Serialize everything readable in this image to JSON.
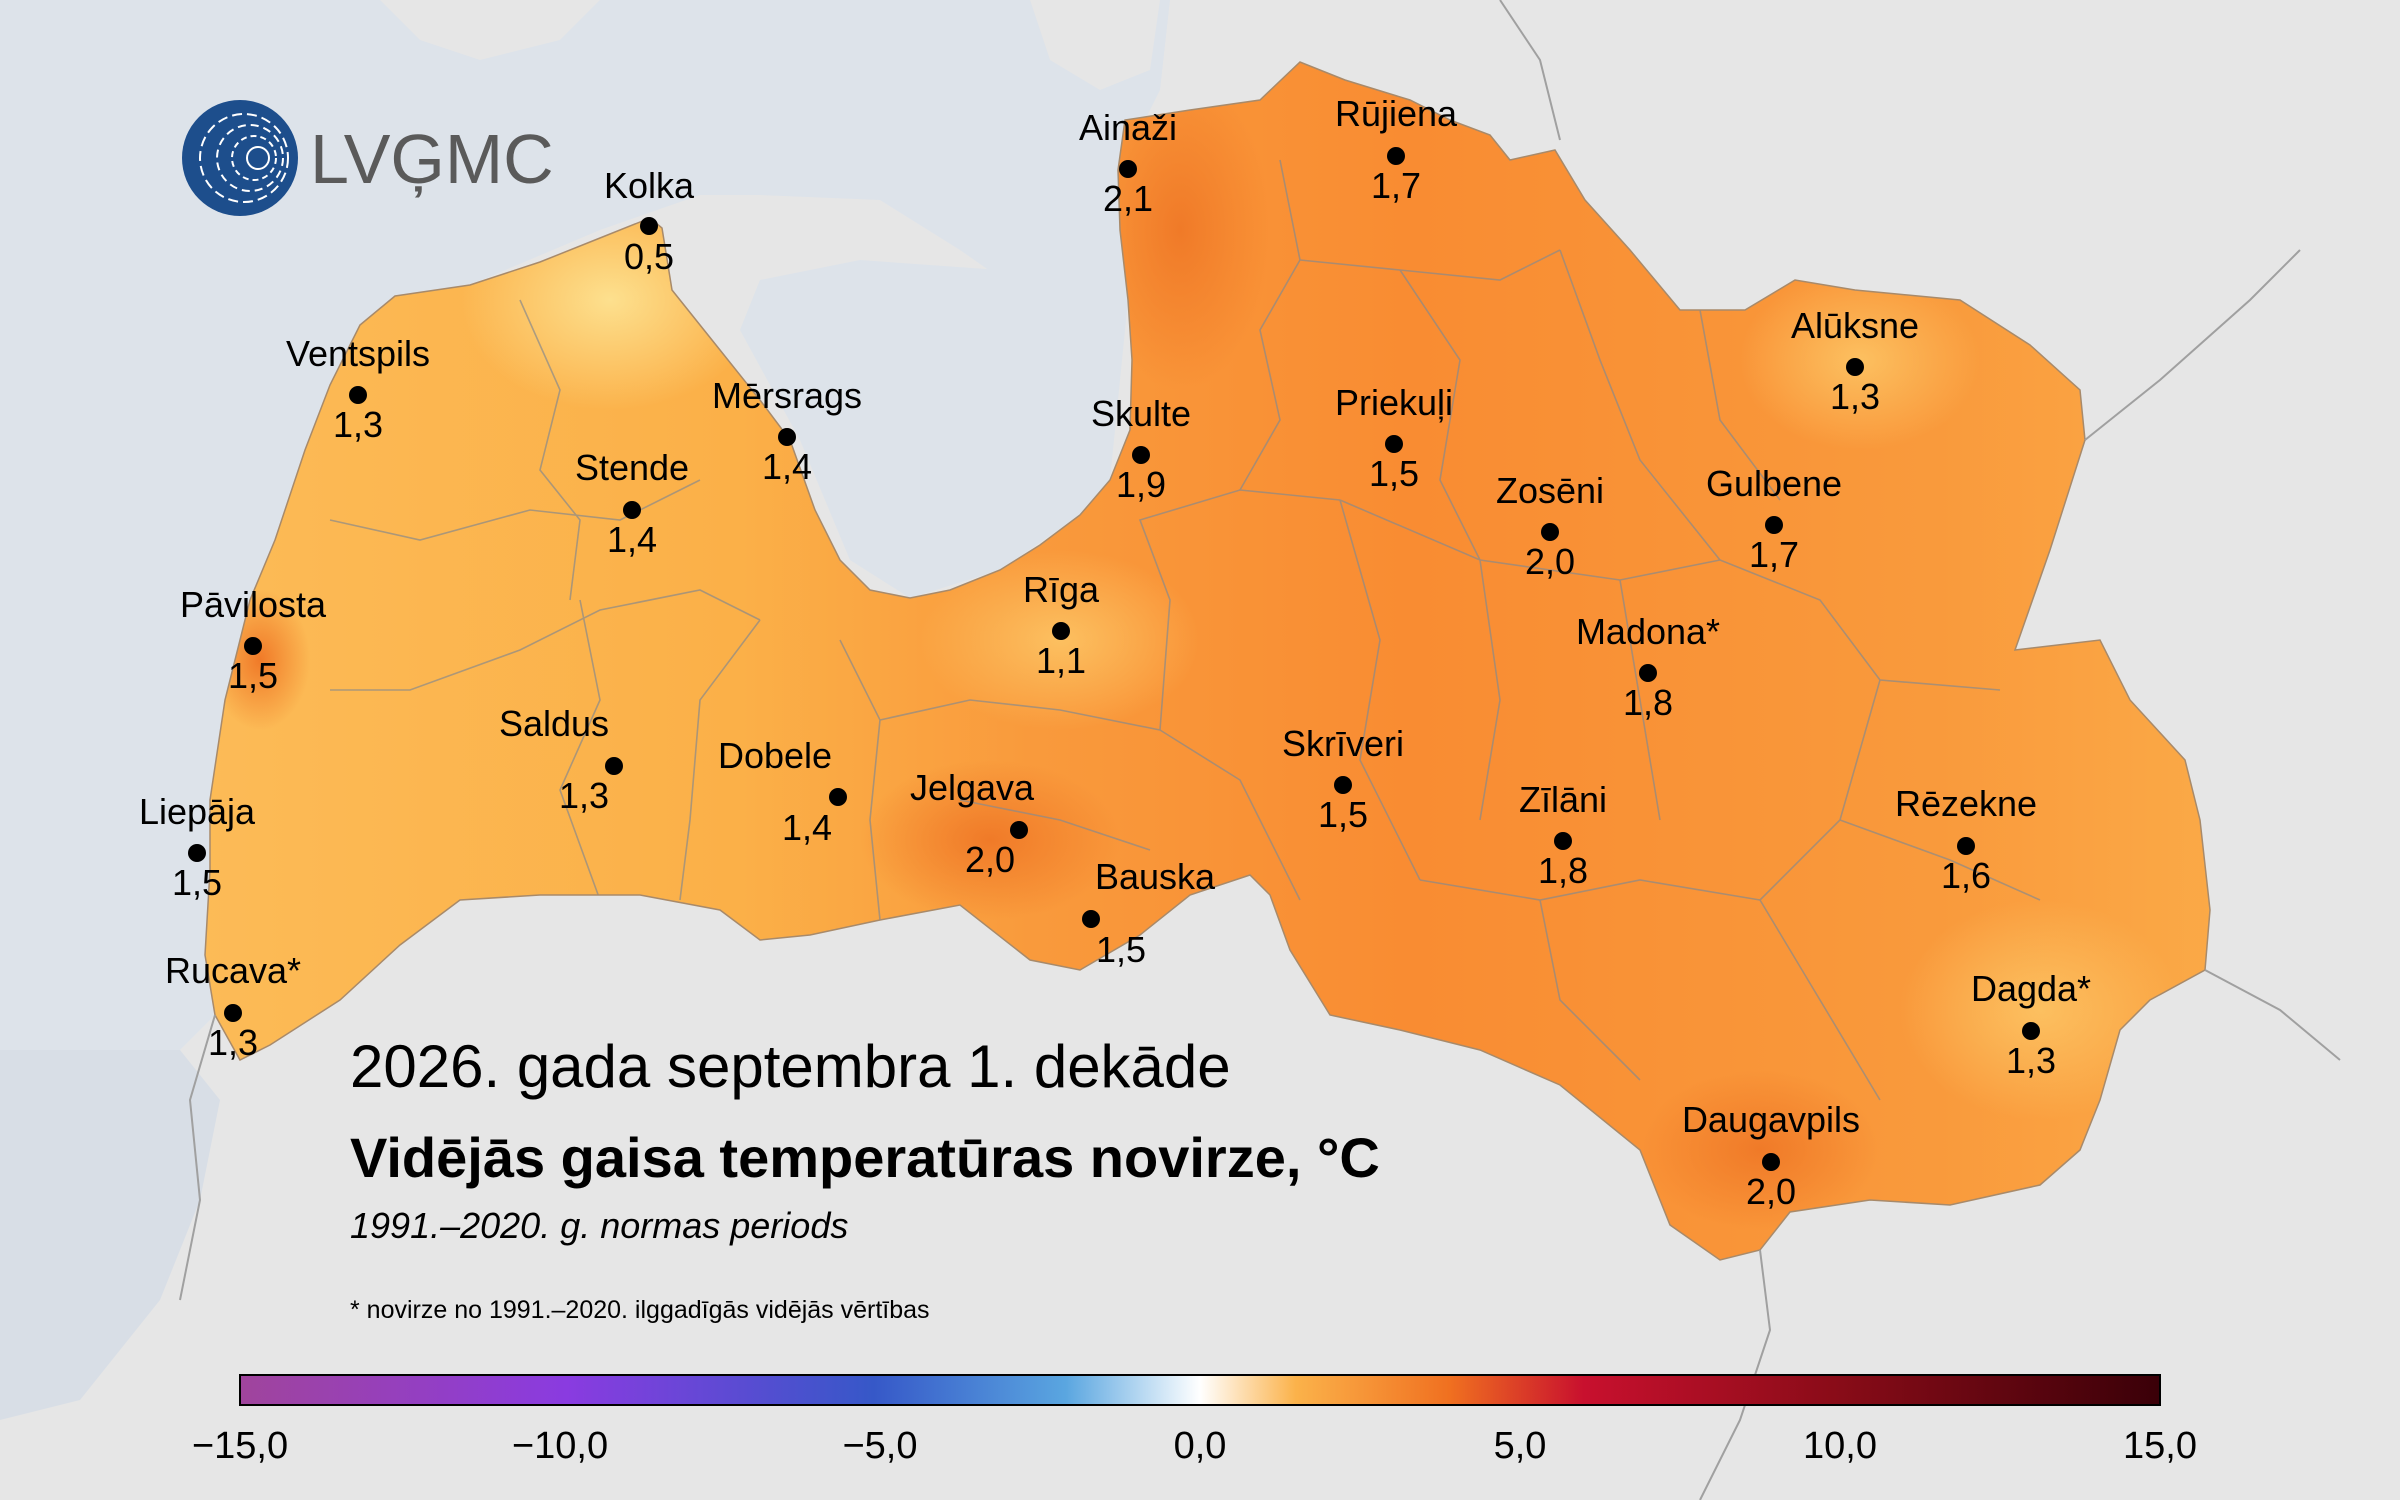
{
  "logo": {
    "text": "LVĢMC",
    "icon": "lvgmc-logo-icon"
  },
  "header": {
    "date_line": "2026. gada septembra 1. dekāde",
    "title": "Vidējās gaisa temperatūras novirze, °C",
    "period": "1991.–2020. g. normas periods"
  },
  "footnote": "* novirze no 1991.–2020. ilggadīgās vidējās vērtības",
  "stations": [
    {
      "name": "Kolka",
      "value": "0,5"
    },
    {
      "name": "Ventspils",
      "value": "1,3"
    },
    {
      "name": "Mērsrags",
      "value": "1,4"
    },
    {
      "name": "Stende",
      "value": "1,4"
    },
    {
      "name": "Pāvilosta",
      "value": "1,5"
    },
    {
      "name": "Saldus",
      "value": "1,3"
    },
    {
      "name": "Dobele",
      "value": "1,4"
    },
    {
      "name": "Liepāja",
      "value": "1,5"
    },
    {
      "name": "Rucava*",
      "value": "1,3"
    },
    {
      "name": "Ainaži",
      "value": "2,1"
    },
    {
      "name": "Rūjiena",
      "value": "1,7"
    },
    {
      "name": "Skulte",
      "value": "1,9"
    },
    {
      "name": "Rīga",
      "value": "1,1"
    },
    {
      "name": "Jelgava",
      "value": "2,0"
    },
    {
      "name": "Bauska",
      "value": "1,5"
    },
    {
      "name": "Priekuļi",
      "value": "1,5"
    },
    {
      "name": "Zosēni",
      "value": "2,0"
    },
    {
      "name": "Gulbene",
      "value": "1,7"
    },
    {
      "name": "Alūksne",
      "value": "1,3"
    },
    {
      "name": "Madona*",
      "value": "1,8"
    },
    {
      "name": "Skrīveri",
      "value": "1,5"
    },
    {
      "name": "Zīlāni",
      "value": "1,8"
    },
    {
      "name": "Rēzekne",
      "value": "1,6"
    },
    {
      "name": "Dagda*",
      "value": "1,3"
    },
    {
      "name": "Daugavpils",
      "value": "2,0"
    }
  ],
  "legend": {
    "min": -15,
    "max": 15,
    "tick_labels": [
      "−15,0",
      "−10,0",
      "−5,0",
      "0,0",
      "5,0",
      "10,0",
      "15,0"
    ],
    "colors": [
      "#a0449c",
      "#8a3be0",
      "#3658c8",
      "#3e8fe0",
      "#ffffff",
      "#fbb24a",
      "#f07020",
      "#c8102e",
      "#8a0c18",
      "#3a0008"
    ]
  },
  "colors": {
    "background": "#e6e6e6",
    "sea": "#dde3ea",
    "west_region": "#fbb44f",
    "east_region": "#f98f36",
    "logo_blue": "#1d4e8c"
  }
}
